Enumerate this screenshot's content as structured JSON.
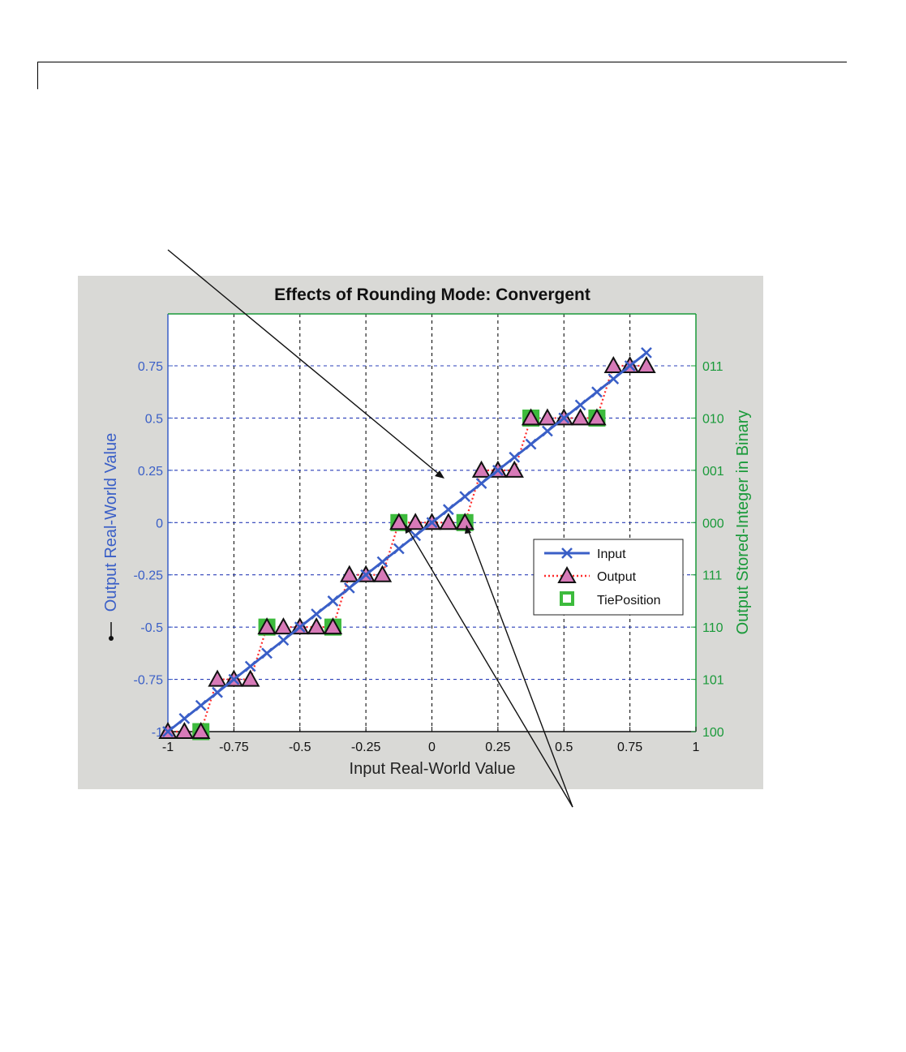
{
  "chart_data": {
    "type": "line",
    "title": "Effects of Rounding Mode: Convergent",
    "xlabel": "Input Real-World Value",
    "ylabel": "Output Real-World Value",
    "y2label": "Output Stored-Integer in Binary",
    "xlim": [
      -1,
      1
    ],
    "ylim": [
      -1,
      1
    ],
    "grid": true,
    "legend_position": "right",
    "x_ticks": [
      -1,
      -0.75,
      -0.5,
      -0.25,
      0,
      0.25,
      0.5,
      0.75,
      1
    ],
    "x_tick_labels": [
      "-1",
      "-0.75",
      "-0.5",
      "-0.25",
      "0",
      "0.25",
      "0.5",
      "0.75",
      "1"
    ],
    "y_ticks": [
      -1,
      -0.75,
      -0.5,
      -0.25,
      0,
      0.25,
      0.5,
      0.75
    ],
    "y_tick_labels": [
      "-1",
      "-0.75",
      "-0.5",
      "-0.25",
      "0",
      "0.25",
      "0.5",
      "0.75"
    ],
    "y2_tick_labels": [
      "100",
      "101",
      "110",
      "111",
      "000",
      "001",
      "010",
      "011"
    ],
    "x": [
      -1,
      -0.9375,
      -0.875,
      -0.8125,
      -0.75,
      -0.6875,
      -0.625,
      -0.5625,
      -0.5,
      -0.4375,
      -0.375,
      -0.3125,
      -0.25,
      -0.1875,
      -0.125,
      -0.0625,
      0,
      0.0625,
      0.125,
      0.1875,
      0.25,
      0.3125,
      0.375,
      0.4375,
      0.5,
      0.5625,
      0.625,
      0.6875,
      0.75,
      0.8125
    ],
    "series": [
      {
        "name": "Input",
        "color": "#3a5fc7",
        "line": "solid",
        "marker": "x",
        "values": [
          -1,
          -0.9375,
          -0.875,
          -0.8125,
          -0.75,
          -0.6875,
          -0.625,
          -0.5625,
          -0.5,
          -0.4375,
          -0.375,
          -0.3125,
          -0.25,
          -0.1875,
          -0.125,
          -0.0625,
          0,
          0.0625,
          0.125,
          0.1875,
          0.25,
          0.3125,
          0.375,
          0.4375,
          0.5,
          0.5625,
          0.625,
          0.6875,
          0.75,
          0.8125
        ]
      },
      {
        "name": "Output",
        "color": "#ff2a2a",
        "line": "dotted",
        "marker": "triangle",
        "values": [
          -1,
          -1,
          -1,
          -0.75,
          -0.75,
          -0.75,
          -0.5,
          -0.5,
          -0.5,
          -0.5,
          -0.5,
          -0.25,
          -0.25,
          -0.25,
          0,
          0,
          0,
          0,
          0,
          0.25,
          0.25,
          0.25,
          0.5,
          0.5,
          0.5,
          0.5,
          0.5,
          0.75,
          0.75,
          0.75
        ]
      },
      {
        "name": "TiePosition",
        "color": "#3dbb3d",
        "line": "none",
        "marker": "square",
        "x": [
          -0.875,
          -0.625,
          -0.375,
          -0.125,
          0.125,
          0.375,
          0.625
        ],
        "values": [
          -1,
          -0.5,
          -0.5,
          0,
          0,
          0.5,
          0.5
        ]
      }
    ]
  },
  "colors": {
    "figure_bg": "#d9d9d6",
    "axes_bg": "#ffffff",
    "left_axis": "#3a5fc7",
    "right_axis": "#1a9a3a",
    "grid": "#2a3fb8",
    "triangle_fill": "#d77ab8"
  }
}
